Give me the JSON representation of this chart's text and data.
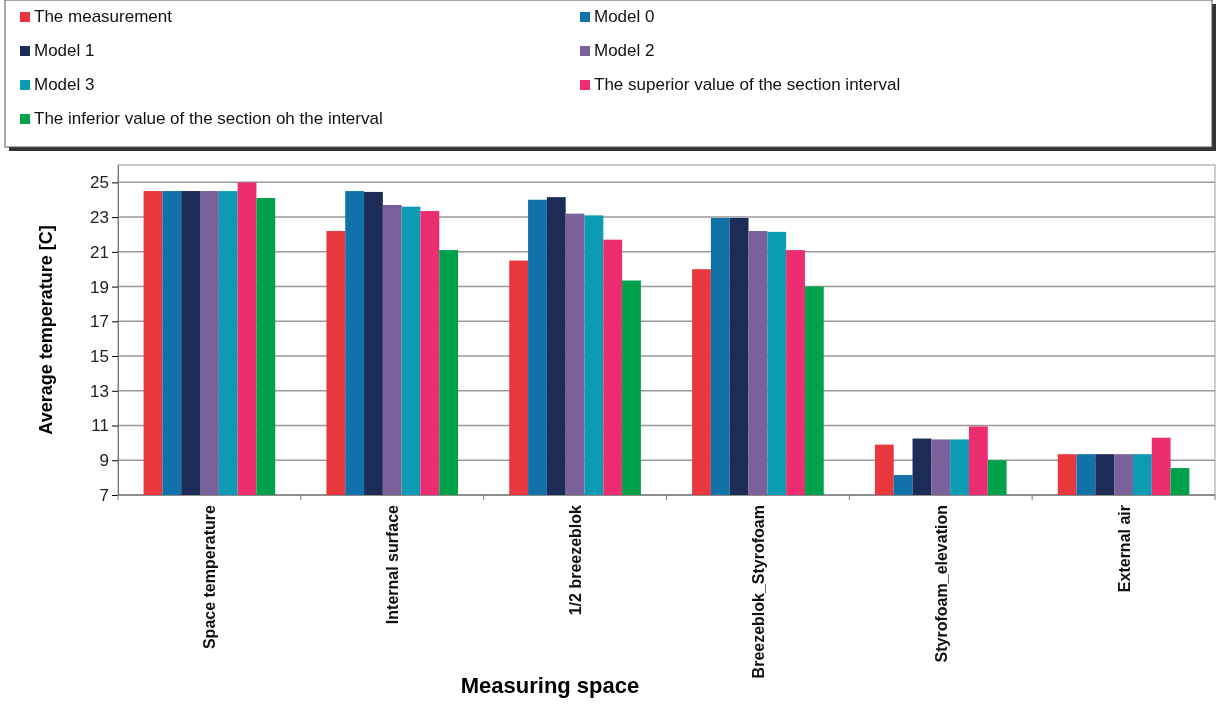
{
  "chart_data": {
    "type": "bar",
    "xlabel": "Measuring space",
    "ylabel": "Average temperature [C]",
    "categories": [
      "Space temperature",
      "Internal surface",
      "1/2 breezeblok",
      "Breezeblok_Styrofoam",
      "Styrofoam_elevation",
      "External air"
    ],
    "series": [
      {
        "name": "The measurement",
        "color": "#e8383d",
        "values": [
          24.5,
          22.2,
          20.5,
          20.0,
          9.9,
          9.35
        ]
      },
      {
        "name": "Model 0",
        "color": "#1172a9",
        "values": [
          24.5,
          24.5,
          24.0,
          22.95,
          8.15,
          9.35
        ]
      },
      {
        "name": "Model 1",
        "color": "#1c2c57",
        "values": [
          24.5,
          24.45,
          24.15,
          22.95,
          10.25,
          9.35
        ]
      },
      {
        "name": "Model 2",
        "color": "#7a6199",
        "values": [
          24.5,
          23.7,
          23.2,
          22.2,
          10.2,
          9.35
        ]
      },
      {
        "name": "Model 3",
        "color": "#0b9cb4",
        "values": [
          24.5,
          23.6,
          23.1,
          22.15,
          10.2,
          9.35
        ]
      },
      {
        "name": "The superior value of the section interval",
        "color": "#ec2e70",
        "values": [
          25.0,
          23.35,
          21.7,
          21.1,
          10.95,
          10.3
        ]
      },
      {
        "name": "The inferior value of the section oh the interval",
        "color": "#00a14b",
        "values": [
          24.1,
          21.1,
          19.35,
          19.0,
          9.0,
          8.55
        ]
      }
    ],
    "ylim": [
      7,
      26
    ],
    "yticks": [
      7,
      9,
      11,
      13,
      15,
      17,
      19,
      21,
      23,
      25
    ],
    "grid": "y",
    "legend": "top"
  }
}
